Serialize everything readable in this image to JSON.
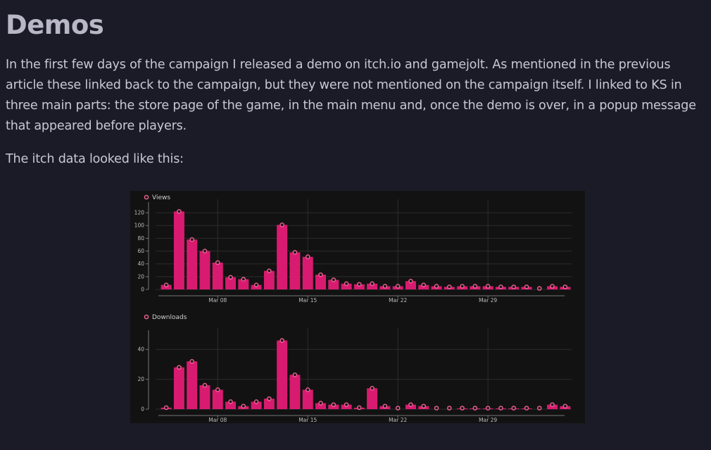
{
  "article": {
    "heading": "Demos",
    "paragraph1": "In the first few days of the campaign I released a demo on itch.io and gamejolt. As mentioned in the previous article these linked back to the campaign, but they were not mentioned on the campaign itself. I linked to KS in three main parts: the store page of the game, in the main menu and, once the demo is over, in a popup message that appeared before players.",
    "paragraph2": "The itch data looked like this:"
  },
  "colors": {
    "bar": "#d81b70",
    "marker": "#f06292",
    "background": "#121212",
    "grid": "#2c2c2c"
  },
  "chart_data": [
    {
      "type": "bar",
      "title": "Views",
      "legend": "Views",
      "ylim": [
        0,
        130
      ],
      "yticks": [
        0,
        20,
        40,
        60,
        80,
        100,
        120
      ],
      "x_tick_labels": [
        {
          "index": 4,
          "label": "Mar 08"
        },
        {
          "index": 11,
          "label": "Mar 15"
        },
        {
          "index": 18,
          "label": "Mar 22"
        },
        {
          "index": 25,
          "label": "Mar 29"
        }
      ],
      "values": [
        7,
        122,
        78,
        60,
        42,
        19,
        16,
        7,
        29,
        101,
        58,
        51,
        23,
        15,
        9,
        8,
        9,
        5,
        5,
        13,
        7,
        5,
        4,
        5,
        5,
        5,
        4,
        4,
        4,
        0,
        5,
        4
      ]
    },
    {
      "type": "bar",
      "title": "Downloads",
      "legend": "Downloads",
      "ylim": [
        0,
        50
      ],
      "yticks": [
        0,
        20,
        40
      ],
      "x_tick_labels": [
        {
          "index": 4,
          "label": "Mar 08"
        },
        {
          "index": 11,
          "label": "Mar 15"
        },
        {
          "index": 18,
          "label": "Mar 22"
        },
        {
          "index": 25,
          "label": "Mar 29"
        }
      ],
      "values": [
        1,
        28,
        32,
        16,
        13,
        5,
        2,
        5,
        7,
        46,
        23,
        13,
        4,
        3,
        3,
        1,
        14,
        2,
        0,
        3,
        2,
        0,
        0,
        0.5,
        0.5,
        0.5,
        0.5,
        0.5,
        0.5,
        0,
        3,
        2
      ]
    }
  ]
}
